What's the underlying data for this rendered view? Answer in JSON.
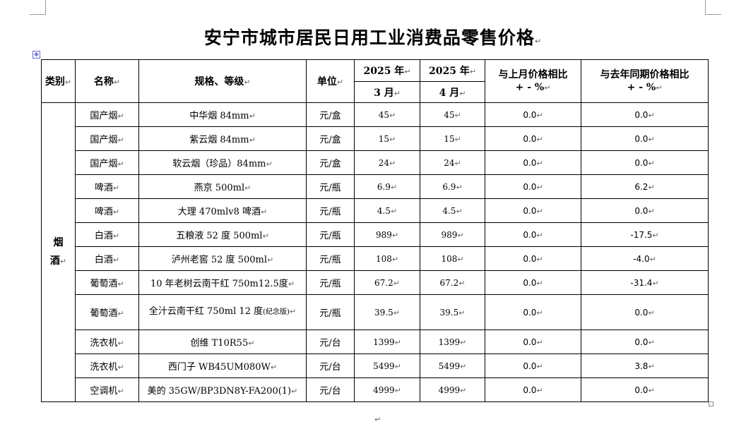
{
  "title": "安宁市城市居民日用工业消费品零售价格",
  "mark": "↵",
  "headers": {
    "category": "类别",
    "name": "名称",
    "spec": "规格、等级",
    "unit": "单位",
    "year_a": "2025 年",
    "year_b": "2025 年",
    "month_a": "3 月",
    "month_b": "4 月",
    "mom": "与上月价格相比",
    "yoy": "与去年同期价格相比",
    "pct": "+ - %"
  },
  "category_label": [
    "烟",
    "酒"
  ],
  "rows": [
    {
      "name": "国产烟",
      "spec": "中华烟 84mm",
      "unit": "元/盒",
      "mar": "45",
      "apr": "45",
      "mom": "0.0",
      "yoy": "0.0"
    },
    {
      "name": "国产烟",
      "spec": "紫云烟 84mm",
      "unit": "元/盒",
      "mar": "15",
      "apr": "15",
      "mom": "0.0",
      "yoy": "0.0"
    },
    {
      "name": "国产烟",
      "spec": "软云烟（珍品）84mm",
      "unit": "元/盒",
      "mar": "24",
      "apr": "24",
      "mom": "0.0",
      "yoy": "0.0"
    },
    {
      "name": "啤酒",
      "spec": "燕京 500ml",
      "unit": "元/瓶",
      "mar": "6.9",
      "apr": "6.9",
      "mom": "0.0",
      "yoy": "6.2"
    },
    {
      "name": "啤酒",
      "spec": "大理 470mlv8 啤酒",
      "unit": "元/瓶",
      "mar": "4.5",
      "apr": "4.5",
      "mom": "0.0",
      "yoy": "0.0"
    },
    {
      "name": "白酒",
      "spec": "五粮液 52 度 500ml",
      "unit": "元/瓶",
      "mar": "989",
      "apr": "989",
      "mom": "0.0",
      "yoy": "-17.5"
    },
    {
      "name": "白酒",
      "spec": "泸州老窖 52 度 500ml",
      "unit": "元/瓶",
      "mar": "108",
      "apr": "108",
      "mom": "0.0",
      "yoy": "-4.0"
    },
    {
      "name": "葡萄酒",
      "spec": "10 年老树云南干红  750m12.5度",
      "unit": "元/瓶",
      "mar": "67.2",
      "apr": "67.2",
      "mom": "0.0",
      "yoy": "-31.4"
    },
    {
      "name": "葡萄酒",
      "spec": "全汁云南干红 750ml 12 度",
      "spec_small": "(纪念版)",
      "unit": "元/瓶",
      "mar": "39.5",
      "apr": "39.5",
      "mom": "0.0",
      "yoy": "0.0"
    },
    {
      "name": "洗衣机",
      "spec": "创维 T10R55",
      "unit": "元/台",
      "mar": "1399",
      "apr": "1399",
      "mom": "0.0",
      "yoy": "0.0"
    },
    {
      "name": "洗衣机",
      "spec": "西门子 WB45UM080W",
      "unit": "元/台",
      "mar": "5499",
      "apr": "5499",
      "mom": "0.0",
      "yoy": "3.8"
    },
    {
      "name": "空调机",
      "spec": "美的 35GW/BP3DN8Y-FA200(1)",
      "unit": "元/台",
      "mar": "4999",
      "apr": "4999",
      "mom": "0.0",
      "yoy": "0.0"
    }
  ]
}
